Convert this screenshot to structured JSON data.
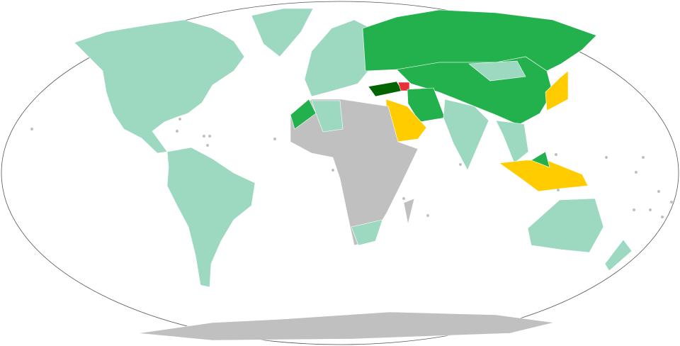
{
  "map": {
    "projection": "Robinson",
    "colors": {
      "ocean": "#ffffff",
      "outline": "#555555",
      "light_teal": "#9dd9c1",
      "green": "#22b14c",
      "dark_green": "#006400",
      "yellow": "#ffcc00",
      "red": "#e8303a",
      "grey": "#c0c0c0"
    },
    "regions": [
      {
        "name": "north-america",
        "color": "light_teal"
      },
      {
        "name": "greenland",
        "color": "light_teal"
      },
      {
        "name": "south-america",
        "color": "light_teal"
      },
      {
        "name": "europe",
        "color": "light_teal"
      },
      {
        "name": "russia",
        "color": "green"
      },
      {
        "name": "central-asia-china",
        "color": "green"
      },
      {
        "name": "mongolia",
        "color": "light_teal"
      },
      {
        "name": "turkey",
        "color": "dark_green"
      },
      {
        "name": "armenia-azerbaijan",
        "color": "red"
      },
      {
        "name": "iran-pakistan",
        "color": "green"
      },
      {
        "name": "arabian-peninsula",
        "color": "yellow"
      },
      {
        "name": "africa",
        "color": "grey"
      },
      {
        "name": "morocco",
        "color": "green"
      },
      {
        "name": "algeria",
        "color": "light_teal"
      },
      {
        "name": "south-africa",
        "color": "light_teal"
      },
      {
        "name": "madagascar",
        "color": "grey"
      },
      {
        "name": "india",
        "color": "light_teal"
      },
      {
        "name": "southeast-asia",
        "color": "light_teal"
      },
      {
        "name": "japan",
        "color": "yellow"
      },
      {
        "name": "indonesia",
        "color": "yellow"
      },
      {
        "name": "malaysia",
        "color": "green"
      },
      {
        "name": "australia",
        "color": "light_teal"
      },
      {
        "name": "new-zealand",
        "color": "light_teal"
      },
      {
        "name": "antarctica",
        "color": "grey"
      }
    ]
  }
}
